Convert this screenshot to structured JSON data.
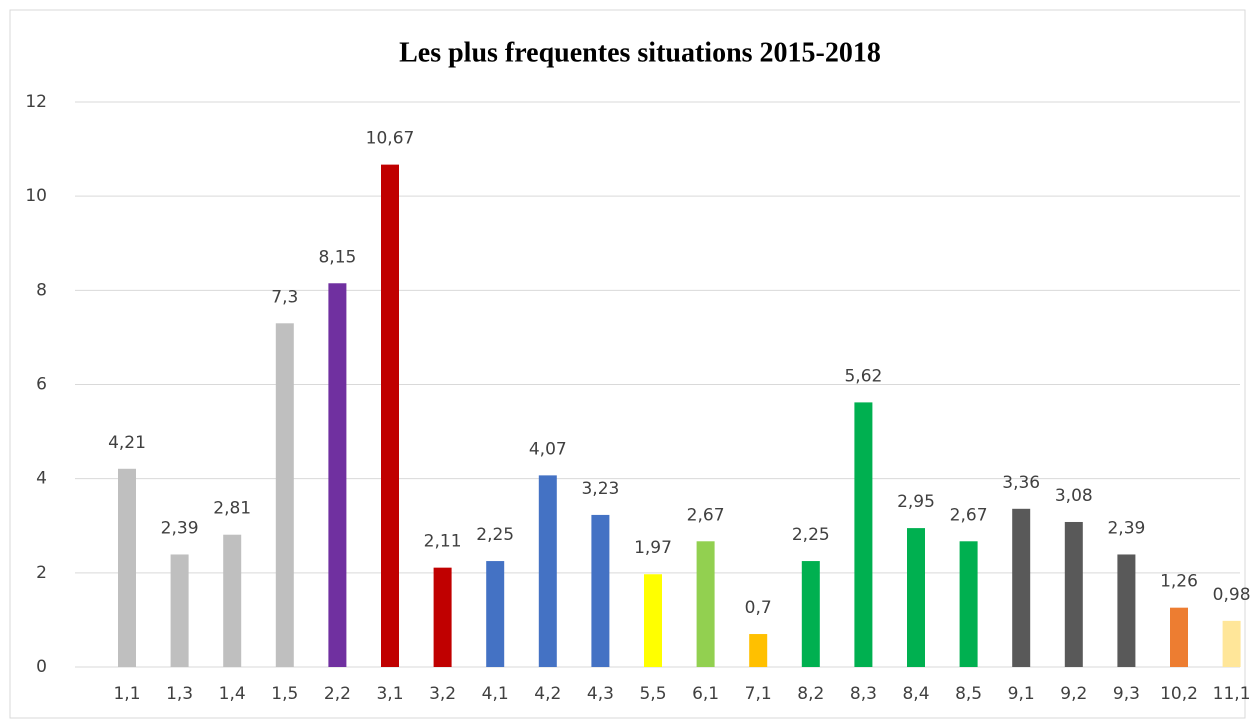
{
  "chart_data": {
    "type": "bar",
    "title": "Les plus frequentes situations 2015-2018",
    "categories": [
      "1,1",
      "1,3",
      "1,4",
      "1,5",
      "2,2",
      "3,1",
      "3,2",
      "4,1",
      "4,2",
      "4,3",
      "5,5",
      "6,1",
      "7,1",
      "8,2",
      "8,3",
      "8,4",
      "8,5",
      "9,1",
      "9,2",
      "9,3",
      "10,2",
      "11,1"
    ],
    "values": [
      4.21,
      2.39,
      2.81,
      7.3,
      8.15,
      10.67,
      2.11,
      2.25,
      4.07,
      3.23,
      1.97,
      2.67,
      0.7,
      2.25,
      5.62,
      2.95,
      2.67,
      3.36,
      3.08,
      2.39,
      1.26,
      0.98
    ],
    "value_labels": [
      "4,21",
      "2,39",
      "2,81",
      "7,3",
      "8,15",
      "10,67",
      "2,11",
      "2,25",
      "4,07",
      "3,23",
      "1,97",
      "2,67",
      "0,7",
      "2,25",
      "5,62",
      "2,95",
      "2,67",
      "3,36",
      "3,08",
      "2,39",
      "1,26",
      "0,98"
    ],
    "colors": [
      "#bfbfbf",
      "#bfbfbf",
      "#bfbfbf",
      "#bfbfbf",
      "#7030a0",
      "#c00000",
      "#c00000",
      "#4472c4",
      "#4472c4",
      "#4472c4",
      "#ffff00",
      "#92d050",
      "#ffc000",
      "#00b050",
      "#00b050",
      "#00b050",
      "#00b050",
      "#595959",
      "#595959",
      "#595959",
      "#ed7d31",
      "#ffe699"
    ],
    "ylim": [
      0,
      12
    ],
    "yticks": [
      0,
      2,
      4,
      6,
      8,
      10,
      12
    ],
    "grid": true
  }
}
